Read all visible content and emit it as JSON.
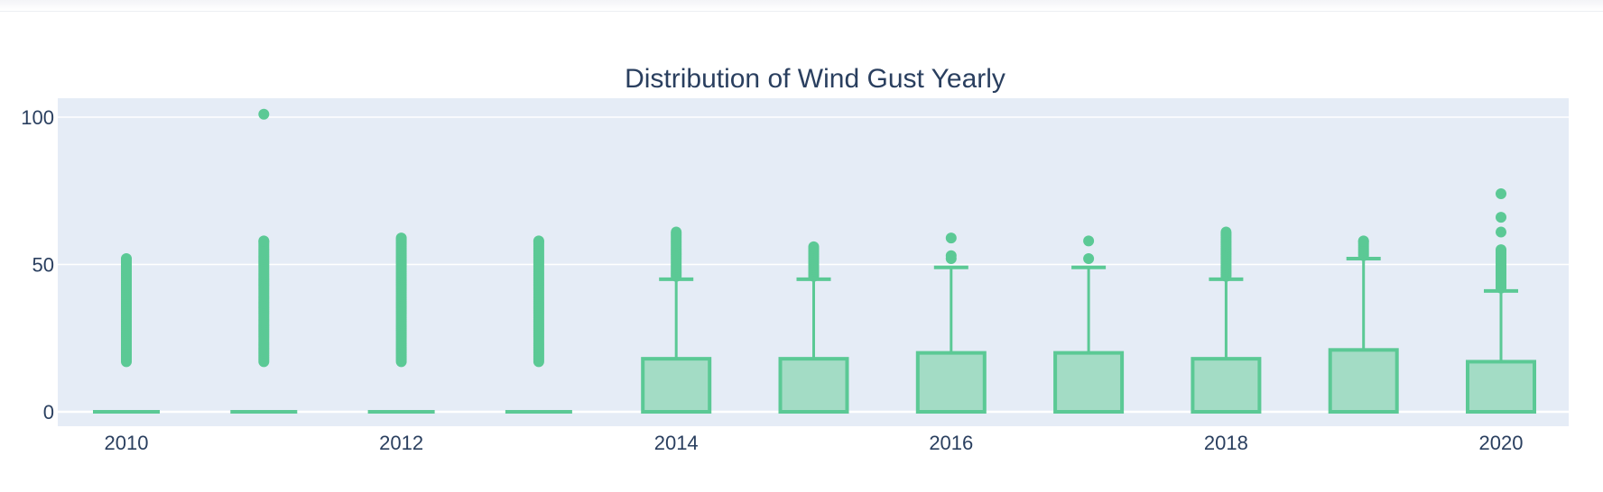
{
  "chart_data": {
    "type": "box",
    "title": "Distribution of Wind Gust Yearly",
    "xlabel": "",
    "ylabel": "",
    "x_ticks": [
      "2010",
      "2012",
      "2014",
      "2016",
      "2018",
      "2020"
    ],
    "y_ticks": [
      "0",
      "50",
      "100"
    ],
    "ylim": [
      -5,
      106
    ],
    "xlim": [
      2009.5,
      2020.5
    ],
    "grid": true,
    "color": "#5bc995",
    "fill_color": "#a3dcc5",
    "plot_bg": "#e5ecf6",
    "text_color": "#2a3f5f",
    "boxes": [
      {
        "x": 2010,
        "q1": 0,
        "median": 0,
        "q3": 0,
        "upper_whisker": 0,
        "outliers_range": [
          17,
          52
        ],
        "outliers": []
      },
      {
        "x": 2011,
        "q1": 0,
        "median": 0,
        "q3": 0,
        "upper_whisker": 0,
        "outliers_range": [
          17,
          58
        ],
        "outliers": [
          101
        ]
      },
      {
        "x": 2012,
        "q1": 0,
        "median": 0,
        "q3": 0,
        "upper_whisker": 0,
        "outliers_range": [
          17,
          59
        ],
        "outliers": []
      },
      {
        "x": 2013,
        "q1": 0,
        "median": 0,
        "q3": 0,
        "upper_whisker": 0,
        "outliers_range": [
          17,
          58
        ],
        "outliers": []
      },
      {
        "x": 2014,
        "q1": 0,
        "median": 0,
        "q3": 18,
        "upper_whisker": 45,
        "outliers_range": [
          46,
          61
        ],
        "outliers": []
      },
      {
        "x": 2015,
        "q1": 0,
        "median": 0,
        "q3": 18,
        "upper_whisker": 45,
        "outliers_range": [
          46,
          56
        ],
        "outliers": []
      },
      {
        "x": 2016,
        "q1": 0,
        "median": 0,
        "q3": 20,
        "upper_whisker": 49,
        "outliers_range": [],
        "outliers": [
          52,
          53,
          59
        ]
      },
      {
        "x": 2017,
        "q1": 0,
        "median": 0,
        "q3": 20,
        "upper_whisker": 49,
        "outliers_range": [],
        "outliers": [
          52,
          58
        ]
      },
      {
        "x": 2018,
        "q1": 0,
        "median": 0,
        "q3": 18,
        "upper_whisker": 45,
        "outliers_range": [
          46,
          61
        ],
        "outliers": []
      },
      {
        "x": 2019,
        "q1": 0,
        "median": 0,
        "q3": 21,
        "upper_whisker": 52,
        "outliers_range": [
          53,
          58
        ],
        "outliers": []
      },
      {
        "x": 2020,
        "q1": 0,
        "median": 0,
        "q3": 17,
        "upper_whisker": 41,
        "outliers_range": [
          42,
          55
        ],
        "outliers": [
          61,
          66,
          74
        ]
      }
    ]
  }
}
